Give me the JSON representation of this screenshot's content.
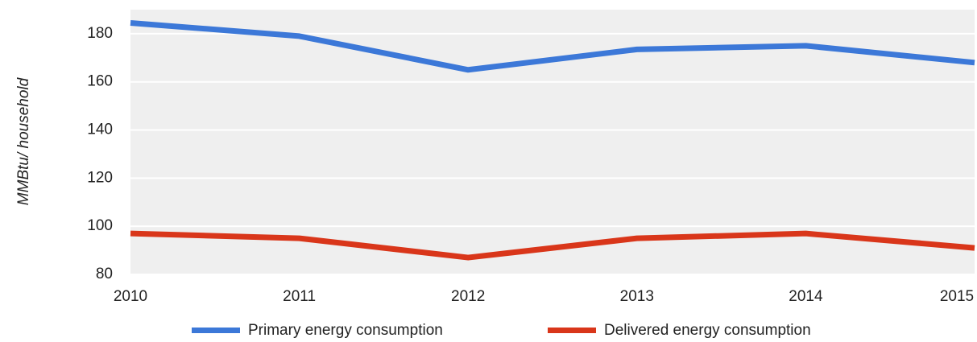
{
  "chart_data": {
    "type": "line",
    "y_label": "MMBtu/ household",
    "x": [
      2010,
      2011,
      2012,
      2013,
      2014,
      2015
    ],
    "xlim": [
      2010,
      2015
    ],
    "xticks": [
      2010,
      2011,
      2012,
      2013,
      2014,
      2015
    ],
    "ylim": [
      80,
      190
    ],
    "yticks": [
      80,
      100,
      120,
      140,
      160,
      180
    ],
    "grid": true,
    "legend": "bottom",
    "series": [
      {
        "name": "Primary energy consumption",
        "color": "#3c78d8",
        "values": [
          184.5,
          179,
          165,
          173.5,
          175,
          168
        ]
      },
      {
        "name": "Delivered energy consumption",
        "color": "#d9361a",
        "values": [
          97,
          95,
          87,
          95,
          97,
          91
        ]
      }
    ]
  }
}
